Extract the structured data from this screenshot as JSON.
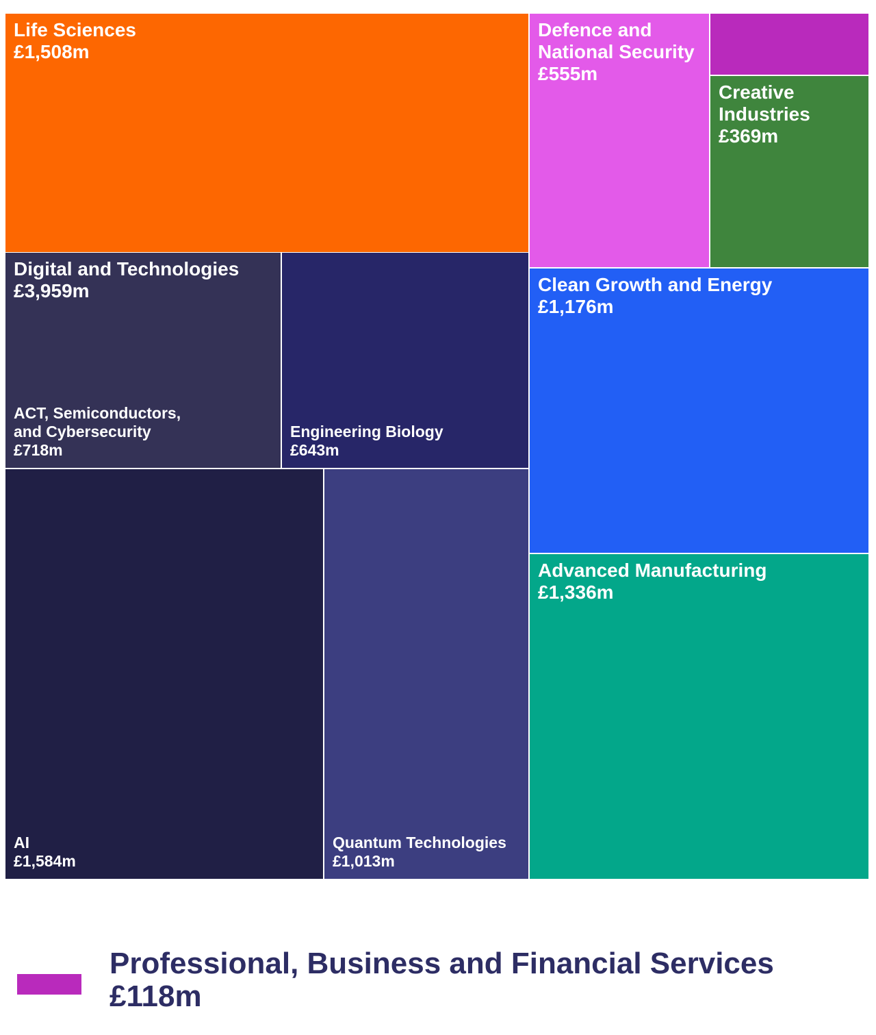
{
  "chart_data": {
    "type": "treemap",
    "categories": [
      {
        "name": "Life Sciences",
        "label_lines": [
          "Life Sciences"
        ],
        "value_label": "£1,508m",
        "value": 1508,
        "color": "#fd6701"
      },
      {
        "name": "Digital and Technologies",
        "label_lines": [
          "Digital and Technologies"
        ],
        "value_label": "£3,959m",
        "value": 3959,
        "children": [
          {
            "name": "ACT, Semiconductors, and Cybersecurity",
            "label_lines": [
              "ACT, Semiconductors,",
              "and Cybersecurity"
            ],
            "value_label": "£718m",
            "value": 718,
            "color": "#343256"
          },
          {
            "name": "Engineering Biology",
            "label_lines": [
              "Engineering Biology"
            ],
            "value_label": "£643m",
            "value": 643,
            "color": "#272668"
          },
          {
            "name": "AI",
            "label_lines": [
              "AI"
            ],
            "value_label": "£1,584m",
            "value": 1584,
            "color": "#201f45"
          },
          {
            "name": "Quantum Technologies",
            "label_lines": [
              "Quantum Technologies"
            ],
            "value_label": "£1,013m",
            "value": 1013,
            "color": "#3c3e80"
          }
        ]
      },
      {
        "name": "Defence and National Security",
        "label_lines": [
          "Defence and",
          "National Security"
        ],
        "value_label": "£555m",
        "value": 555,
        "color": "#e35ae9"
      },
      {
        "name": "Professional, Business and Financial Services",
        "label_lines": [],
        "value_label": "",
        "value": 118,
        "color": "#b92abc"
      },
      {
        "name": "Creative Industries",
        "label_lines": [
          "Creative",
          "Industries"
        ],
        "value_label": "£369m",
        "value": 369,
        "color": "#3f853d"
      },
      {
        "name": "Clean Growth and Energy",
        "label_lines": [
          "Clean Growth and Energy"
        ],
        "value_label": "£1,176m",
        "value": 1176,
        "color": "#225ff5"
      },
      {
        "name": "Advanced Manufacturing",
        "label_lines": [
          "Advanced Manufacturing"
        ],
        "value_label": "£1,336m",
        "value": 1336,
        "color": "#03a78a"
      }
    ],
    "legend": {
      "name": "Professional, Business and Financial Services",
      "value_label": "£118m",
      "color": "#b92abc",
      "text_color": "#2d2d64"
    }
  }
}
